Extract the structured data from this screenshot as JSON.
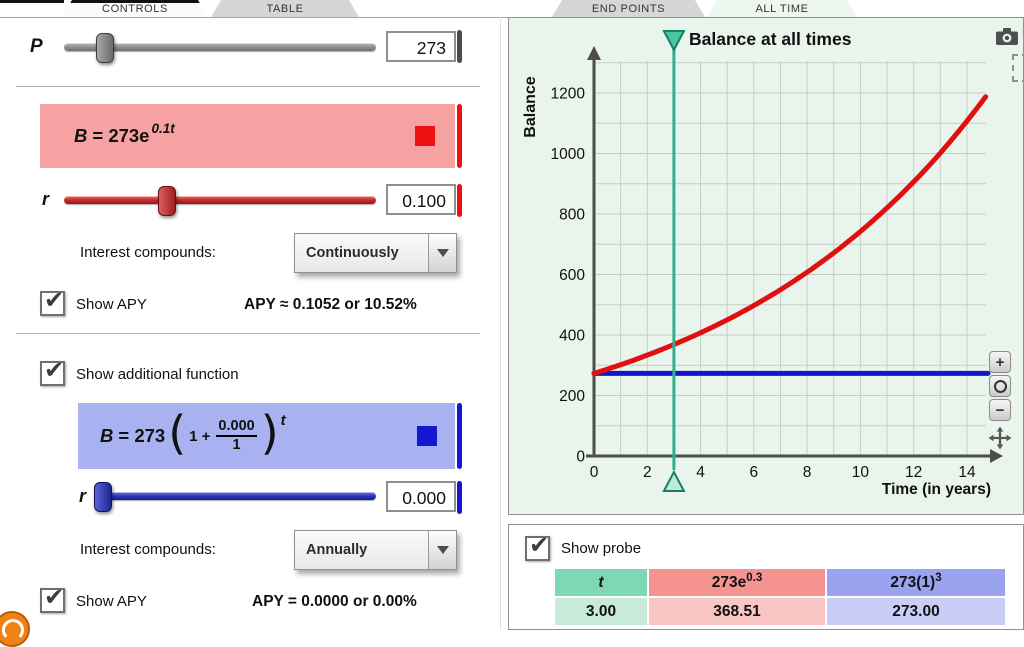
{
  "tabs": {
    "controls": "CONTROLS",
    "table": "TABLE",
    "end_points": "END POINTS",
    "all_time": "ALL TIME"
  },
  "controls": {
    "p": {
      "label": "P",
      "value": "273"
    },
    "red": {
      "formula": {
        "var": "B",
        "mid": "= 273e",
        "sup": "0.1t"
      },
      "r_label": "r",
      "r_value": "0.100",
      "compounds_label": "Interest compounds:",
      "compounds_value": "Continuously",
      "show_apy": "Show APY",
      "apy": "APY ≈ 0.1052 or 10.52%"
    },
    "show_additional": "Show additional function",
    "blue": {
      "formula": {
        "var": "B",
        "mid": "= 273",
        "open": "(",
        "one_plus": "1 +",
        "numerator": "0.000",
        "denominator": "1",
        "close": ")",
        "sup": "t"
      },
      "r_label": "r",
      "r_value": "0.000",
      "compounds_label": "Interest compounds:",
      "compounds_value": "Annually",
      "show_apy": "Show APY",
      "apy": "APY = 0.0000 or 0.00%"
    }
  },
  "graph": {
    "title": "Balance at all times",
    "ylabel": "Balance",
    "xlabel": "Time (in years)",
    "zoom_in": "+",
    "zoom_out": "−"
  },
  "chart_data": {
    "type": "line",
    "title": "Balance at all times",
    "xlabel": "Time (in years)",
    "ylabel": "Balance",
    "xlim": [
      0,
      15
    ],
    "ylim": [
      0,
      1300
    ],
    "x_ticks": [
      0,
      2,
      4,
      6,
      8,
      10,
      12,
      14
    ],
    "y_ticks": [
      0,
      200,
      400,
      600,
      800,
      1000,
      1200
    ],
    "grid": true,
    "legend": "none",
    "series": [
      {
        "name": "B = 273e^(0.1t)",
        "kind": "exponential",
        "P": 273,
        "r": 0.1,
        "color": "#e01010",
        "samples": [
          [
            0,
            273.0
          ],
          [
            3,
            368.51
          ],
          [
            6,
            497.36
          ],
          [
            9,
            671.36
          ],
          [
            12,
            906.22
          ],
          [
            14,
            1107.04
          ]
        ]
      },
      {
        "name": "B = 273(1 + 0.000/1)^t",
        "kind": "constant",
        "value": 273,
        "color": "#1515cf"
      }
    ],
    "probe": {
      "t": 3.0,
      "color": "#2fb08f",
      "readings": {
        "red": 368.51,
        "blue": 273.0
      }
    }
  },
  "probe_panel": {
    "show_probe": "Show probe",
    "table": {
      "header_t": "t",
      "header_red_base": "273e",
      "header_red_sup": "0.3",
      "header_blue_base": "273(1)",
      "header_blue_sup": "3",
      "value_t": "3.00",
      "value_red": "368.51",
      "value_blue": "273.00"
    }
  },
  "colors": {
    "red_accent": "#ee1111",
    "red_box": "#f7a2a2",
    "blue_accent": "#1515d6",
    "blue_box": "#a9b2f0",
    "gray_accent": "#4a4a4a",
    "probe_green": "#2fb08f",
    "graph_bg": "#e9f4ec",
    "table": {
      "t_header": "#7fd8b4",
      "t_value": "#c8ebd9",
      "red_header": "#f59391",
      "red_value": "#f9c6c4",
      "blue_header": "#9aa3ef",
      "blue_value": "#c9cef7"
    }
  }
}
